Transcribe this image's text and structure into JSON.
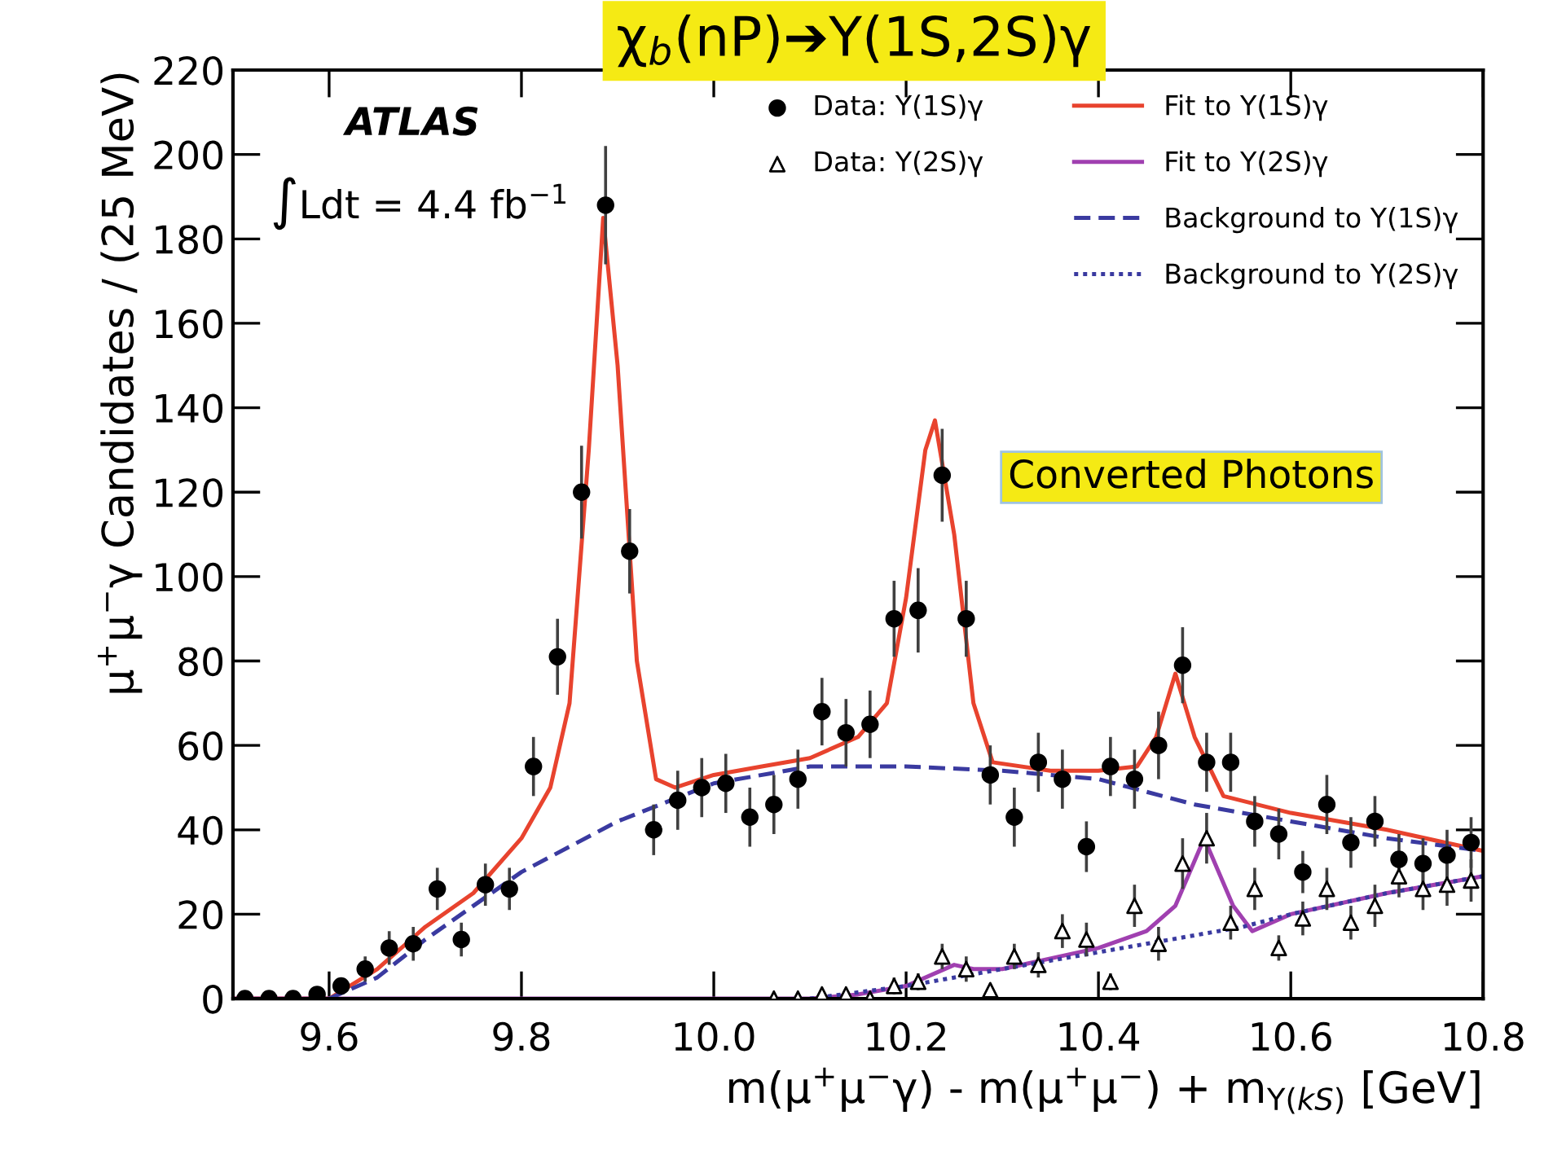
{
  "chart_data": {
    "type": "scatter",
    "title": "χ$_{b}$(nP)➔Υ(1S,2S)γ",
    "xlabel": "m(μ$^{+}$μ$^{−}$γ) - m(μ$^{+}$μ$^{−}$) + m$_{Υ(kS)}$ [GeV]",
    "ylabel": "μ$^{+}$μ$^{−}$γ Candidates / (25 MeV)",
    "annotations": [
      "ATLAS",
      "∫Ldt = 4.4 fb$^{−1}$",
      "Converted Photons"
    ],
    "x": [
      9.5125,
      9.5375,
      9.5625,
      9.5875,
      9.6125,
      9.6375,
      9.6625,
      9.6875,
      9.7125,
      9.7375,
      9.7625,
      9.7875,
      9.8125,
      9.8375,
      9.8625,
      9.8875,
      9.9125,
      9.9375,
      9.9625,
      9.9875,
      10.0125,
      10.0375,
      10.0625,
      10.0875,
      10.1125,
      10.1375,
      10.1625,
      10.1875,
      10.2125,
      10.2375,
      10.2625,
      10.2875,
      10.3125,
      10.3375,
      10.3625,
      10.3875,
      10.4125,
      10.4375,
      10.4625,
      10.4875,
      10.5125,
      10.5375,
      10.5625,
      10.5875,
      10.6125,
      10.6375,
      10.6625,
      10.6875,
      10.7125,
      10.7375,
      10.7625,
      10.7875
    ],
    "series": [
      {
        "name": "Data: Υ(1S)γ",
        "marker": "circle",
        "color": "#000000",
        "values": [
          0,
          0,
          0,
          1,
          3,
          7,
          12,
          13,
          26,
          14,
          27,
          26,
          55,
          81,
          120,
          188,
          106,
          40,
          47,
          50,
          51,
          43,
          46,
          52,
          68,
          63,
          65,
          90,
          92,
          124,
          90,
          53,
          43,
          56,
          52,
          36,
          55,
          52,
          60,
          79,
          56,
          56,
          42,
          39,
          30,
          46,
          37,
          42,
          33,
          32,
          34,
          37
        ],
        "errors": [
          null,
          null,
          null,
          1,
          2,
          3,
          4,
          4,
          5,
          4,
          5,
          5,
          7,
          9,
          11,
          14,
          10,
          6,
          7,
          7,
          7,
          7,
          7,
          7,
          8,
          8,
          8,
          9,
          10,
          11,
          9,
          7,
          7,
          7,
          7,
          6,
          7,
          7,
          8,
          9,
          7,
          7,
          6,
          6,
          5,
          7,
          6,
          6,
          6,
          6,
          6,
          6
        ]
      },
      {
        "name": "Data: Υ(2S)γ",
        "marker": "triangle",
        "color": "#000000",
        "values": [
          null,
          null,
          null,
          null,
          null,
          null,
          null,
          null,
          null,
          null,
          null,
          null,
          null,
          null,
          null,
          null,
          null,
          null,
          null,
          null,
          null,
          null,
          0,
          0,
          1,
          1,
          0,
          3,
          4,
          10,
          7,
          2,
          10,
          8,
          16,
          14,
          4,
          22,
          13,
          32,
          38,
          18,
          26,
          12,
          19,
          26,
          18,
          22,
          29,
          26,
          27,
          28
        ],
        "errors": [
          null,
          null,
          null,
          null,
          null,
          null,
          null,
          null,
          null,
          null,
          null,
          null,
          null,
          null,
          null,
          null,
          null,
          null,
          null,
          null,
          null,
          null,
          null,
          null,
          1,
          1,
          null,
          2,
          2,
          3,
          3,
          1,
          3,
          3,
          4,
          4,
          2,
          5,
          4,
          6,
          6,
          4,
          5,
          3,
          4,
          5,
          4,
          5,
          5,
          5,
          5,
          5
        ]
      },
      {
        "name": "Fit to Υ(1S)γ",
        "type": "line",
        "line_style": "solid",
        "color": "#e8432e",
        "x": [
          9.5,
          9.6,
          9.65,
          9.7,
          9.75,
          9.8,
          9.83,
          9.85,
          9.87,
          9.885,
          9.9,
          9.92,
          9.94,
          9.96,
          10.0,
          10.05,
          10.1,
          10.15,
          10.18,
          10.2,
          10.22,
          10.23,
          10.25,
          10.27,
          10.29,
          10.35,
          10.4,
          10.44,
          10.46,
          10.48,
          10.5,
          10.53,
          10.6,
          10.7,
          10.8
        ],
        "values": [
          0,
          0,
          7,
          17,
          25,
          38,
          50,
          70,
          130,
          185,
          150,
          80,
          52,
          50,
          53,
          55,
          57,
          62,
          70,
          95,
          130,
          137,
          110,
          70,
          56,
          54,
          54,
          55,
          62,
          77,
          62,
          48,
          44,
          40,
          35
        ]
      },
      {
        "name": "Fit to Υ(2S)γ",
        "type": "line",
        "line_style": "solid",
        "color": "#a040b0",
        "x": [
          9.5,
          10.1,
          10.15,
          10.2,
          10.25,
          10.27,
          10.3,
          10.4,
          10.45,
          10.48,
          10.51,
          10.54,
          10.56,
          10.6,
          10.7,
          10.8
        ],
        "values": [
          0,
          0,
          1,
          3,
          8,
          7,
          7,
          12,
          16,
          22,
          38,
          22,
          16,
          20,
          25,
          29
        ]
      },
      {
        "name": "Background to Υ(1S)γ",
        "type": "line",
        "line_style": "dashed",
        "color": "#3a3aa0",
        "x": [
          9.6,
          9.65,
          9.7,
          9.8,
          9.9,
          10.0,
          10.1,
          10.2,
          10.3,
          10.4,
          10.5,
          10.6,
          10.7,
          10.8
        ],
        "values": [
          0,
          5,
          14,
          30,
          42,
          51,
          55,
          55,
          54,
          52,
          46,
          42,
          38,
          35
        ]
      },
      {
        "name": "Background to Υ(2S)γ",
        "type": "line",
        "line_style": "dotted",
        "color": "#3a3aa0",
        "x": [
          10.1,
          10.2,
          10.3,
          10.4,
          10.5,
          10.55,
          10.6,
          10.7,
          10.8
        ],
        "values": [
          0,
          3,
          7,
          11,
          15,
          17,
          20,
          25,
          29
        ]
      }
    ],
    "xlim": [
      9.5,
      10.8
    ],
    "ylim": [
      0,
      220
    ],
    "xticks": [
      {
        "value": 9.6,
        "label": "9.6"
      },
      {
        "value": 9.8,
        "label": "9.8"
      },
      {
        "value": 10.0,
        "label": "10.0"
      },
      {
        "value": 10.2,
        "label": "10.2"
      },
      {
        "value": 10.4,
        "label": "10.4"
      },
      {
        "value": 10.6,
        "label": "10.6"
      },
      {
        "value": 10.8,
        "label": "10.8"
      }
    ],
    "yticks": [
      0,
      20,
      40,
      60,
      80,
      100,
      120,
      140,
      160,
      180,
      200,
      220
    ],
    "grid": false,
    "legend": "top right"
  }
}
